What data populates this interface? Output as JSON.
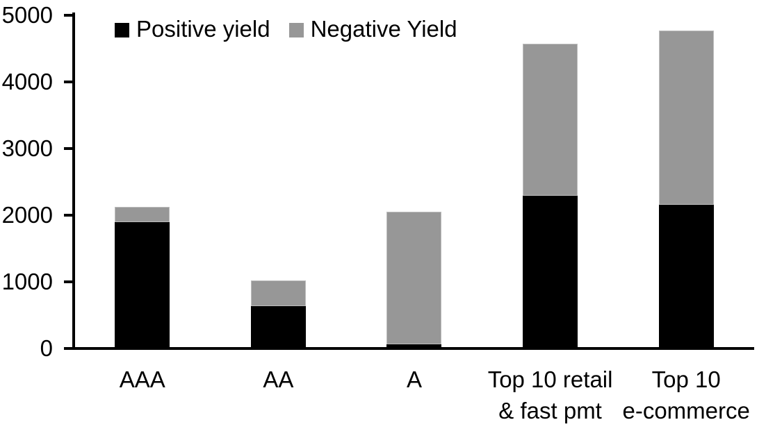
{
  "chart_data": {
    "type": "bar",
    "stacked": true,
    "categories": [
      "AAA",
      "AA",
      "A",
      "Top 10 retail\n& fast pmt",
      "Top 10\ne-commerce"
    ],
    "series": [
      {
        "name": "Positive yield",
        "color": "#000000",
        "values": [
          1880,
          610,
          40,
          2270,
          2140
        ]
      },
      {
        "name": "Negative Yield",
        "color": "#979797",
        "values": [
          230,
          390,
          1990,
          2280,
          2610
        ]
      }
    ],
    "ylim": [
      0,
      5000
    ],
    "yticks": [
      0,
      1000,
      2000,
      3000,
      4000,
      5000
    ],
    "legend_position": "top",
    "grid": false,
    "background": "#ffffff",
    "axis_color": "#000000"
  }
}
